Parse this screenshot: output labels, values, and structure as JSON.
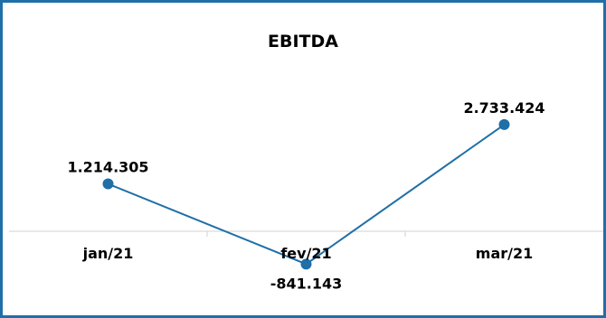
{
  "chart_data": {
    "type": "line",
    "title": "EBITDA",
    "categories": [
      "jan/21",
      "fev/21",
      "mar/21"
    ],
    "series": [
      {
        "values": [
          1214305,
          -841143,
          2733424
        ],
        "labels": [
          "1.214.305",
          "-841.143",
          "2.733.424"
        ],
        "color": "#1f6fa8"
      }
    ],
    "xlabel": "",
    "ylabel": "",
    "grid": false,
    "legend": "none"
  },
  "colors": {
    "frame": "#1f6fa8",
    "axis": "#d0d0d0",
    "text": "#000000"
  }
}
